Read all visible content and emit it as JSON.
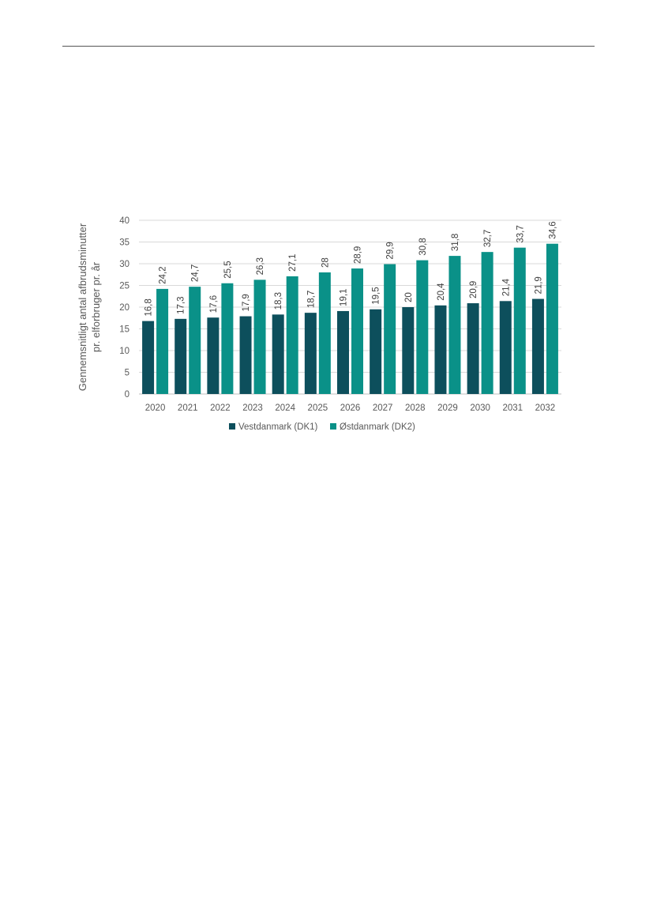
{
  "chart_data": {
    "type": "bar",
    "categories": [
      "2020",
      "2021",
      "2022",
      "2023",
      "2024",
      "2025",
      "2026",
      "2027",
      "2028",
      "2029",
      "2030",
      "2031",
      "2032"
    ],
    "series": [
      {
        "name": "Vestdanmark (DK1)",
        "color": "#0d4f5c",
        "values": [
          16.8,
          17.3,
          17.6,
          17.9,
          18.3,
          18.7,
          19.1,
          19.5,
          20,
          20.4,
          20.9,
          21.4,
          21.9
        ],
        "labels": [
          "16,8",
          "17,3",
          "17,6",
          "17,9",
          "18,3",
          "18,7",
          "19,1",
          "19,5",
          "20",
          "20,4",
          "20,9",
          "21,4",
          "21,9"
        ]
      },
      {
        "name": "Østdanmark (DK2)",
        "color": "#0a9188",
        "values": [
          24.2,
          24.7,
          25.5,
          26.3,
          27.1,
          28,
          28.9,
          29.9,
          30.8,
          31.8,
          32.7,
          33.7,
          34.6
        ],
        "labels": [
          "24,2",
          "24,7",
          "25,5",
          "26,3",
          "27,1",
          "28",
          "28,9",
          "29,9",
          "30,8",
          "31,8",
          "32,7",
          "33,7",
          "34,6"
        ]
      }
    ],
    "ylabel_line1": "Gennemsnitligt antal afbrudsminutter",
    "ylabel_line2": "pr. elforbruger pr. år",
    "ylim": [
      0,
      40
    ],
    "yticks": [
      0,
      5,
      10,
      15,
      20,
      25,
      30,
      35,
      40
    ],
    "grid": true,
    "legend_position": "bottom",
    "gridline_color": "#d9d9d9"
  }
}
